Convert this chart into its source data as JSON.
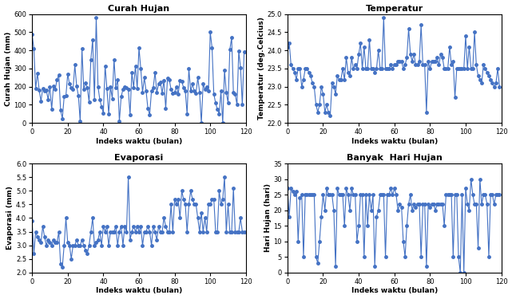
{
  "curah_hujan": [
    490,
    410,
    190,
    275,
    180,
    120,
    190,
    175,
    180,
    130,
    200,
    75,
    205,
    185,
    240,
    265,
    70,
    25,
    145,
    150,
    270,
    215,
    195,
    185,
    320,
    205,
    150,
    10,
    410,
    185,
    220,
    195,
    115,
    350,
    460,
    130,
    580,
    200,
    130,
    90,
    55,
    315,
    190,
    50,
    200,
    135,
    350,
    195,
    240,
    10,
    145,
    185,
    200,
    195,
    185,
    45,
    280,
    195,
    315,
    190,
    415,
    300,
    170,
    250,
    175,
    80,
    45,
    175,
    195,
    280,
    170,
    215,
    225,
    165,
    235,
    80,
    245,
    240,
    185,
    165,
    170,
    200,
    160,
    235,
    230,
    195,
    175,
    50,
    300,
    175,
    215,
    175,
    165,
    250,
    170,
    0,
    215,
    185,
    200,
    175,
    500,
    415,
    160,
    110,
    75,
    50,
    175,
    0,
    290,
    170,
    110,
    405,
    470,
    170,
    160,
    100,
    395,
    305,
    100,
    390
  ],
  "temperatur": [
    24.1,
    24.2,
    23.6,
    23.5,
    23.4,
    23.2,
    23.5,
    23.5,
    23.0,
    23.2,
    23.5,
    23.5,
    23.4,
    23.3,
    23.1,
    23.0,
    22.5,
    22.3,
    22.5,
    23.0,
    22.8,
    22.3,
    22.5,
    22.3,
    22.2,
    23.1,
    23.0,
    22.8,
    23.3,
    23.2,
    23.2,
    23.5,
    23.2,
    23.8,
    23.4,
    23.3,
    23.8,
    23.5,
    23.6,
    23.5,
    23.9,
    24.2,
    23.5,
    24.1,
    23.5,
    23.5,
    24.3,
    23.5,
    23.5,
    23.4,
    23.5,
    24.0,
    23.5,
    23.5,
    24.9,
    23.5,
    23.5,
    23.5,
    23.6,
    23.5,
    23.6,
    23.6,
    23.7,
    23.7,
    23.7,
    23.5,
    23.6,
    23.8,
    24.6,
    23.9,
    23.7,
    23.9,
    23.6,
    23.6,
    23.7,
    24.7,
    23.6,
    23.6,
    22.3,
    23.7,
    23.5,
    23.7,
    23.7,
    23.7,
    23.8,
    23.6,
    23.9,
    23.8,
    23.5,
    23.5,
    23.5,
    24.1,
    23.6,
    23.7,
    22.7,
    23.5,
    23.5,
    23.5,
    23.5,
    23.5,
    24.4,
    23.5,
    24.1,
    23.5,
    23.5,
    24.5,
    23.6,
    23.3,
    23.2,
    23.1,
    23.6,
    23.5,
    23.4,
    23.3,
    23.2,
    23.1,
    23.0,
    23.1,
    23.5,
    23.0
  ],
  "evaporasi": [
    3.9,
    2.7,
    3.5,
    3.3,
    3.2,
    3.1,
    3.7,
    3.3,
    3.0,
    3.2,
    3.1,
    3.0,
    3.2,
    3.1,
    3.1,
    3.5,
    2.3,
    2.2,
    3.0,
    4.0,
    3.1,
    3.0,
    2.5,
    3.0,
    3.0,
    3.2,
    3.0,
    3.0,
    3.2,
    3.0,
    2.8,
    2.7,
    3.0,
    3.5,
    4.0,
    3.0,
    3.1,
    3.2,
    3.5,
    3.0,
    3.7,
    3.5,
    3.7,
    3.0,
    3.5,
    3.5,
    3.5,
    3.7,
    3.0,
    3.5,
    3.7,
    3.0,
    3.7,
    3.5,
    5.5,
    3.2,
    3.5,
    3.7,
    3.5,
    3.7,
    3.5,
    3.7,
    3.0,
    3.5,
    3.5,
    3.7,
    3.5,
    3.0,
    3.7,
    3.5,
    3.2,
    3.7,
    3.5,
    3.5,
    4.0,
    3.7,
    3.5,
    3.5,
    4.5,
    3.5,
    4.7,
    4.5,
    4.7,
    4.0,
    5.0,
    4.7,
    4.5,
    3.5,
    4.5,
    5.0,
    4.7,
    4.5,
    4.5,
    4.0,
    3.5,
    4.2,
    3.5,
    4.0,
    3.5,
    4.5,
    4.5,
    4.7,
    4.7,
    3.5,
    3.5,
    5.0,
    4.5,
    4.7,
    5.5,
    3.5,
    4.5,
    3.5,
    3.5,
    5.1,
    3.5,
    3.5,
    3.5,
    4.0,
    3.5,
    3.5
  ],
  "hari_hujan": [
    27,
    18,
    27,
    26,
    25,
    26,
    10,
    24,
    25,
    5,
    25,
    25,
    25,
    25,
    25,
    25,
    5,
    3,
    10,
    18,
    25,
    20,
    27,
    25,
    25,
    25,
    20,
    2,
    27,
    25,
    25,
    25,
    15,
    27,
    25,
    20,
    27,
    25,
    25,
    10,
    15,
    25,
    25,
    5,
    25,
    15,
    25,
    20,
    25,
    2,
    18,
    20,
    25,
    25,
    25,
    5,
    25,
    25,
    27,
    25,
    27,
    25,
    20,
    22,
    21,
    10,
    5,
    15,
    22,
    25,
    20,
    22,
    21,
    22,
    22,
    5,
    22,
    22,
    2,
    22,
    21,
    22,
    22,
    20,
    22,
    22,
    22,
    22,
    15,
    25,
    25,
    25,
    25,
    5,
    25,
    25,
    5,
    0,
    25,
    0,
    27,
    22,
    20,
    30,
    25,
    22,
    22,
    8,
    30,
    22,
    25,
    25,
    22,
    5,
    25,
    25,
    22,
    25,
    25,
    25
  ],
  "curah_hujan_ylim": [
    0,
    600
  ],
  "curah_hujan_yticks": [
    0,
    100,
    200,
    300,
    400,
    500,
    600
  ],
  "temperatur_ylim": [
    22,
    25
  ],
  "temperatur_yticks": [
    22,
    22.5,
    23,
    23.5,
    24,
    24.5,
    25
  ],
  "evaporasi_ylim": [
    2,
    6
  ],
  "evaporasi_yticks": [
    2,
    2.5,
    3,
    3.5,
    4,
    4.5,
    5,
    5.5,
    6
  ],
  "hari_hujan_ylim": [
    0,
    35
  ],
  "hari_hujan_yticks": [
    0,
    5,
    10,
    15,
    20,
    25,
    30,
    35
  ],
  "xlim": [
    0,
    120
  ],
  "xticks": [
    0,
    20,
    40,
    60,
    80,
    100,
    120
  ],
  "xlabel": "Indeks waktu (bulan)",
  "titles": [
    "Curah Hujan",
    "Temperatur",
    "Evaporasi",
    "Banyak  Hari Hujan"
  ],
  "ylabels": [
    "Curah Hujan (mm)",
    "Temperatur (deg.Celcius)",
    "Evaporasi (mm)",
    "Hari Hujan (hari)"
  ],
  "line_color": "#4472C4",
  "marker": "o",
  "markersize": 2.5,
  "linewidth": 0.8,
  "bg_color": "#FFFFFF",
  "title_fontsize": 8,
  "label_fontsize": 6.5,
  "tick_fontsize": 6
}
